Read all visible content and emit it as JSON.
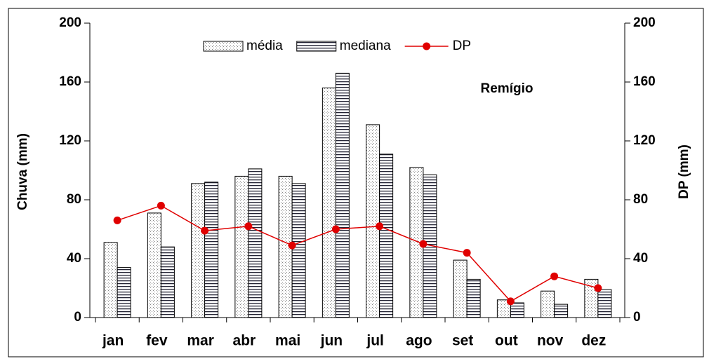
{
  "chart_data": {
    "type": "bar",
    "annotation": "Remígio",
    "ylabel": "Chuva (mm)",
    "y2label": "DP (mm)",
    "categories": [
      "jan",
      "fev",
      "mar",
      "abr",
      "mai",
      "jun",
      "jul",
      "ago",
      "set",
      "out",
      "nov",
      "dez"
    ],
    "series": [
      {
        "name": "média",
        "type": "bar",
        "pattern": "dots",
        "color": "#000000",
        "values": [
          51,
          71,
          91,
          96,
          96,
          156,
          131,
          102,
          39,
          12,
          18,
          26
        ]
      },
      {
        "name": "mediana",
        "type": "bar",
        "pattern": "stripes",
        "color": "#000000",
        "values": [
          34,
          48,
          92,
          101,
          91,
          166,
          111,
          97,
          26,
          10,
          9,
          19
        ]
      },
      {
        "name": "DP",
        "type": "line",
        "axis": "y2",
        "color": "#e00000",
        "values": [
          66,
          76,
          59,
          62,
          49,
          60,
          62,
          50,
          44,
          11,
          28,
          20
        ]
      }
    ],
    "ylim": [
      0,
      200
    ],
    "yticks": [
      0,
      40,
      80,
      120,
      160,
      200
    ],
    "y2lim": [
      0,
      200
    ],
    "y2ticks": [
      0,
      40,
      80,
      120,
      160,
      200
    ]
  }
}
